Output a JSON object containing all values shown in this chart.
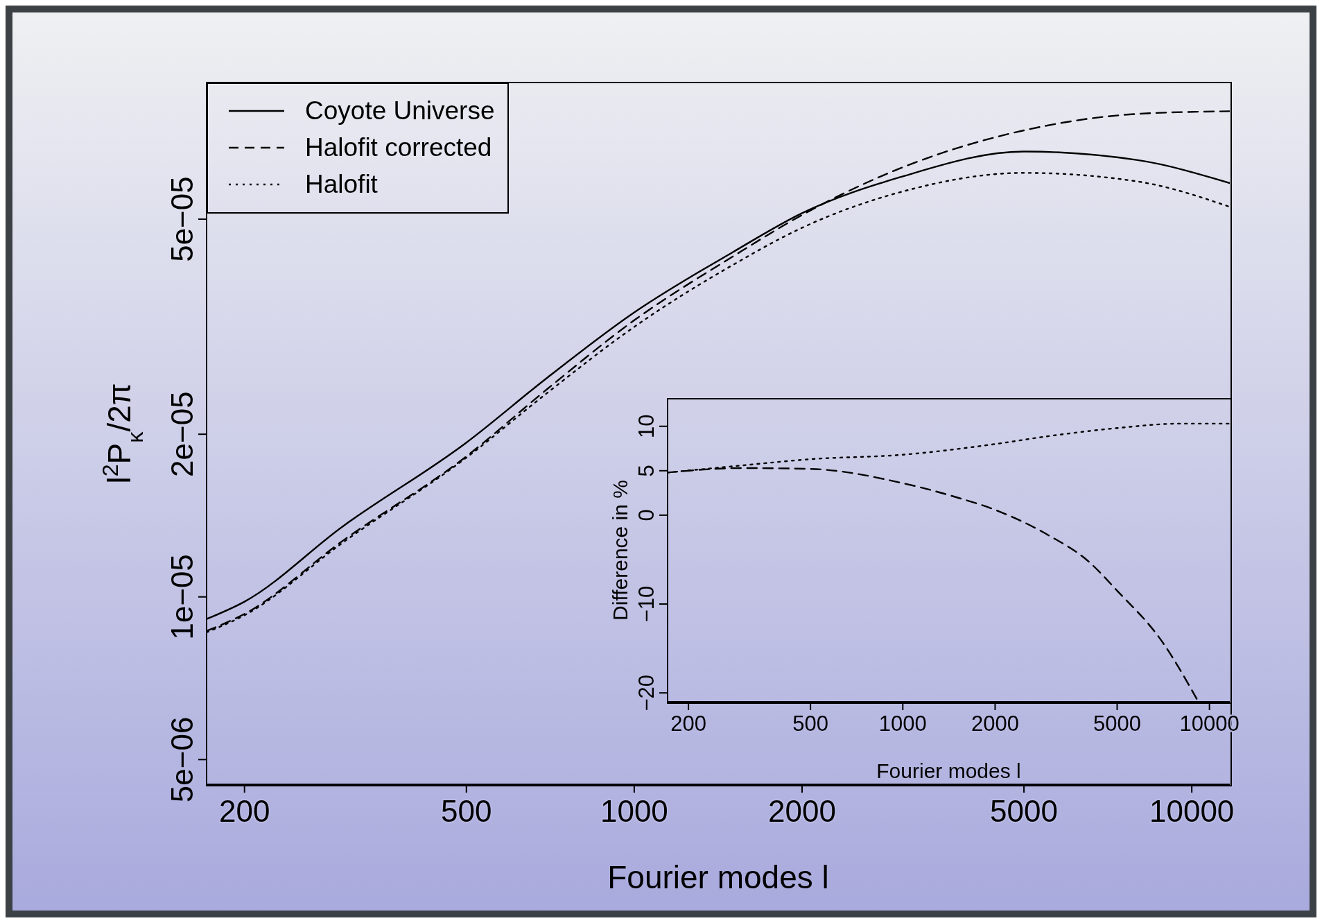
{
  "chart_data": [
    {
      "type": "line",
      "xlabel": "Fourier modes l",
      "ylabel": "l$^{2}$P$_{κ}$/2π",
      "log": "xy",
      "legend": "top left",
      "marker": "none",
      "xlim": [
        171,
        11700
      ],
      "xticks": [
        200,
        500,
        1000,
        2000,
        5000,
        10000
      ],
      "ylim": [
        4.5e-06,
        8.95e-05
      ],
      "yticks": [
        {
          "value": 5e-06,
          "label": "5e−06"
        },
        {
          "value": 1e-05,
          "label": "1e−05"
        },
        {
          "value": 2e-05,
          "label": "2e−05"
        },
        {
          "value": 5e-05,
          "label": "5e−05"
        }
      ],
      "x": [
        171,
        200,
        300,
        500,
        700,
        1000,
        1500,
        2000,
        3000,
        5000,
        8000,
        11700
      ],
      "series": [
        {
          "name": "Coyote Universe",
          "color": "#000000",
          "line_style": "solid",
          "values": [
            9.1e-06,
            9.8e-06,
            1.35e-05,
            1.93e-05,
            2.55e-05,
            3.36e-05,
            4.34e-05,
            5.13e-05,
            5.98e-05,
            6.67e-05,
            6.43e-05,
            5.83e-05
          ]
        },
        {
          "name": "Halofit corrected",
          "color": "#000000",
          "line_style": "dashed",
          "values": [
            8.65e-06,
            9.3e-06,
            1.27e-05,
            1.82e-05,
            2.43e-05,
            3.25e-05,
            4.26e-05,
            5.09e-05,
            6.21e-05,
            7.3e-05,
            7.83e-05,
            7.92e-05
          ]
        },
        {
          "name": "Halofit",
          "color": "#000000",
          "line_style": "dotted",
          "values": [
            8.6e-06,
            9.25e-06,
            1.26e-05,
            1.81e-05,
            2.39e-05,
            3.16e-05,
            4.11e-05,
            4.82e-05,
            5.61e-05,
            6.09e-05,
            5.87e-05,
            5.27e-05
          ]
        }
      ]
    },
    {
      "type": "line",
      "xlabel": "Fourier modes l",
      "ylabel": "Difference in %",
      "log": "x",
      "legend": false,
      "marker": "none",
      "xlim": [
        171,
        11650
      ],
      "xticks": [
        200,
        500,
        1000,
        2000,
        5000,
        10000
      ],
      "ylim": [
        -21,
        13.1
      ],
      "yticks": [
        {
          "value": -20,
          "label": "−20"
        },
        {
          "value": -10,
          "label": "−10"
        },
        0,
        5,
        10
      ],
      "series": [
        {
          "color": "#000000",
          "line_style": "dotted",
          "x": [
            171,
            300,
            500,
            1000,
            2000,
            3000,
            5000,
            8000,
            11650
          ],
          "values": [
            4.8,
            5.6,
            6.3,
            6.8,
            8.0,
            8.9,
            9.8,
            10.3,
            10.3
          ]
        },
        {
          "color": "#000000",
          "line_style": "dashed",
          "x": [
            171,
            300,
            500,
            1000,
            1500,
            2000,
            3000,
            4000,
            5000,
            7000,
            9200
          ],
          "values": [
            4.8,
            5.3,
            5.2,
            3.6,
            2.0,
            0.6,
            -2.3,
            -5.1,
            -8.5,
            -14.2,
            -21.0
          ]
        }
      ]
    }
  ]
}
